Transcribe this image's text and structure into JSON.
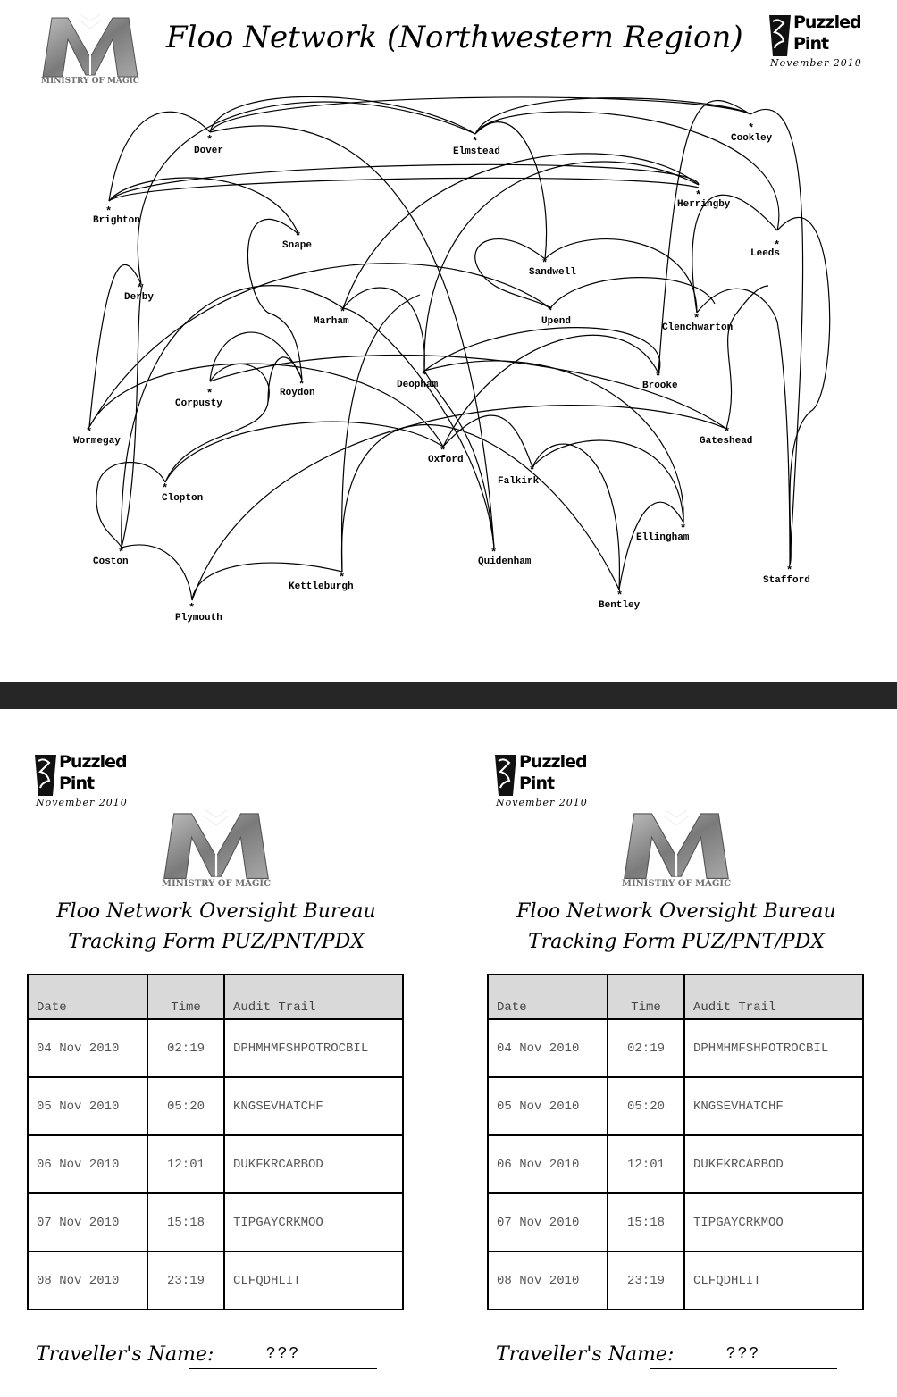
{
  "header": {
    "title": "Floo Network (Northwestern Region)",
    "ministry_caption": "MINISTRY OF MAGIC",
    "badge": {
      "line1": "Puzzled",
      "line2": "Pint",
      "date": "November 2010"
    }
  },
  "map": {
    "cities": [
      "Dover",
      "Elmstead",
      "Cookley",
      "Brighton",
      "Herringby",
      "Snape",
      "Leeds",
      "Derby",
      "Sandwell",
      "Marham",
      "Upend",
      "Clenchwarton",
      "Roydon",
      "Deopham",
      "Brooke",
      "Corpusty",
      "Wormegay",
      "Gateshead",
      "Oxford",
      "Clopton",
      "Falkirk",
      "Ellingham",
      "Coston",
      "Quidenham",
      "Kettleburgh",
      "Stafford",
      "Plymouth",
      "Bentley"
    ]
  },
  "forms": [
    {
      "badge": {
        "line1": "Puzzled",
        "line2": "Pint",
        "date": "November 2010"
      },
      "ministry_caption": "MINISTRY OF MAGIC",
      "title_line1": "Floo Network Oversight Bureau",
      "title_line2": "Tracking Form PUZ/PNT/PDX",
      "columns": [
        "Date",
        "Time",
        "Audit Trail"
      ],
      "rows": [
        {
          "date": "04 Nov 2010",
          "time": "02:19",
          "trail": "DPHMHMFSHPOTROCBIL"
        },
        {
          "date": "05 Nov 2010",
          "time": "05:20",
          "trail": "KNGSEVHATCHF"
        },
        {
          "date": "06 Nov 2010",
          "time": "12:01",
          "trail": "DUKFKRCARBOD"
        },
        {
          "date": "07 Nov 2010",
          "time": "15:18",
          "trail": "TIPGAYCRKMOO"
        },
        {
          "date": "08 Nov 2010",
          "time": "23:19",
          "trail": "CLFQDHLIT"
        }
      ],
      "traveller_label": "Traveller's Name:",
      "traveller_value": "???"
    },
    {
      "badge": {
        "line1": "Puzzled",
        "line2": "Pint",
        "date": "November 2010"
      },
      "ministry_caption": "MINISTRY OF MAGIC",
      "title_line1": "Floo Network Oversight Bureau",
      "title_line2": "Tracking Form PUZ/PNT/PDX",
      "columns": [
        "Date",
        "Time",
        "Audit Trail"
      ],
      "rows": [
        {
          "date": "04 Nov 2010",
          "time": "02:19",
          "trail": "DPHMHMFSHPOTROCBIL"
        },
        {
          "date": "05 Nov 2010",
          "time": "05:20",
          "trail": "KNGSEVHATCHF"
        },
        {
          "date": "06 Nov 2010",
          "time": "12:01",
          "trail": "DUKFKRCARBOD"
        },
        {
          "date": "07 Nov 2010",
          "time": "15:18",
          "trail": "TIPGAYCRKMOO"
        },
        {
          "date": "08 Nov 2010",
          "time": "23:19",
          "trail": "CLFQDHLIT"
        }
      ],
      "traveller_label": "Traveller's Name:",
      "traveller_value": "???"
    }
  ]
}
